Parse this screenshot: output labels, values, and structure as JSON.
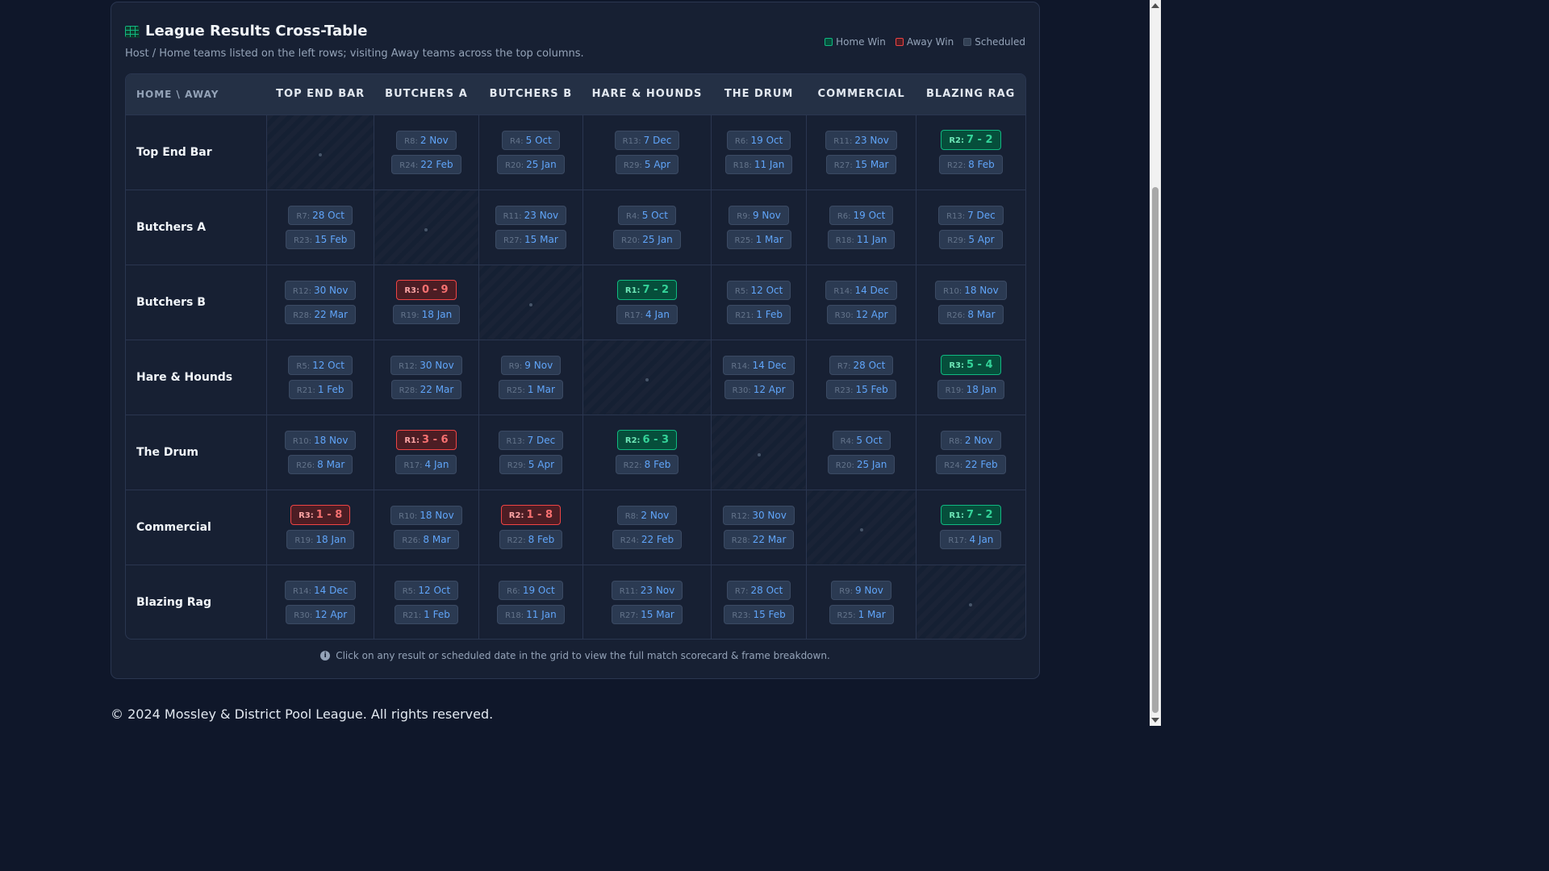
{
  "card": {
    "title": "League Results Cross-Table",
    "subtitle": "Host / Home teams listed on the left rows; visiting Away teams across the top columns.",
    "legend": [
      {
        "label": "Home Win",
        "kind": "home"
      },
      {
        "label": "Away Win",
        "kind": "away"
      },
      {
        "label": "Scheduled",
        "kind": "sched"
      }
    ],
    "corner_label": "HOME \\ AWAY",
    "columns": [
      "TOP END BAR",
      "BUTCHERS A",
      "BUTCHERS B",
      "HARE & HOUNDS",
      "THE DRUM",
      "COMMERCIAL",
      "BLAZING RAG"
    ],
    "note": "Click on any result or scheduled date in the grid to view the full match scorecard & frame breakdown."
  },
  "rows": [
    {
      "team": "Top End Bar",
      "cells": [
        null,
        [
          {
            "r": "R8:",
            "t": "2 Nov",
            "k": "sched"
          },
          {
            "r": "R24:",
            "t": "22 Feb",
            "k": "sched"
          }
        ],
        [
          {
            "r": "R4:",
            "t": "5 Oct",
            "k": "sched"
          },
          {
            "r": "R20:",
            "t": "25 Jan",
            "k": "sched"
          }
        ],
        [
          {
            "r": "R13:",
            "t": "7 Dec",
            "k": "sched"
          },
          {
            "r": "R29:",
            "t": "5 Apr",
            "k": "sched"
          }
        ],
        [
          {
            "r": "R6:",
            "t": "19 Oct",
            "k": "sched"
          },
          {
            "r": "R18:",
            "t": "11 Jan",
            "k": "sched"
          }
        ],
        [
          {
            "r": "R11:",
            "t": "23 Nov",
            "k": "sched"
          },
          {
            "r": "R27:",
            "t": "15 Mar",
            "k": "sched"
          }
        ],
        [
          {
            "r": "R2:",
            "t": "7 - 2",
            "k": "home"
          },
          {
            "r": "R22:",
            "t": "8 Feb",
            "k": "sched"
          }
        ]
      ]
    },
    {
      "team": "Butchers A",
      "cells": [
        [
          {
            "r": "R7:",
            "t": "28 Oct",
            "k": "sched"
          },
          {
            "r": "R23:",
            "t": "15 Feb",
            "k": "sched"
          }
        ],
        null,
        [
          {
            "r": "R11:",
            "t": "23 Nov",
            "k": "sched"
          },
          {
            "r": "R27:",
            "t": "15 Mar",
            "k": "sched"
          }
        ],
        [
          {
            "r": "R4:",
            "t": "5 Oct",
            "k": "sched"
          },
          {
            "r": "R20:",
            "t": "25 Jan",
            "k": "sched"
          }
        ],
        [
          {
            "r": "R9:",
            "t": "9 Nov",
            "k": "sched"
          },
          {
            "r": "R25:",
            "t": "1 Mar",
            "k": "sched"
          }
        ],
        [
          {
            "r": "R6:",
            "t": "19 Oct",
            "k": "sched"
          },
          {
            "r": "R18:",
            "t": "11 Jan",
            "k": "sched"
          }
        ],
        [
          {
            "r": "R13:",
            "t": "7 Dec",
            "k": "sched"
          },
          {
            "r": "R29:",
            "t": "5 Apr",
            "k": "sched"
          }
        ]
      ]
    },
    {
      "team": "Butchers B",
      "cells": [
        [
          {
            "r": "R12:",
            "t": "30 Nov",
            "k": "sched"
          },
          {
            "r": "R28:",
            "t": "22 Mar",
            "k": "sched"
          }
        ],
        [
          {
            "r": "R3:",
            "t": "0 - 9",
            "k": "away"
          },
          {
            "r": "R19:",
            "t": "18 Jan",
            "k": "sched"
          }
        ],
        null,
        [
          {
            "r": "R1:",
            "t": "7 - 2",
            "k": "home"
          },
          {
            "r": "R17:",
            "t": "4 Jan",
            "k": "sched"
          }
        ],
        [
          {
            "r": "R5:",
            "t": "12 Oct",
            "k": "sched"
          },
          {
            "r": "R21:",
            "t": "1 Feb",
            "k": "sched"
          }
        ],
        [
          {
            "r": "R14:",
            "t": "14 Dec",
            "k": "sched"
          },
          {
            "r": "R30:",
            "t": "12 Apr",
            "k": "sched"
          }
        ],
        [
          {
            "r": "R10:",
            "t": "18 Nov",
            "k": "sched"
          },
          {
            "r": "R26:",
            "t": "8 Mar",
            "k": "sched"
          }
        ]
      ]
    },
    {
      "team": "Hare & Hounds",
      "cells": [
        [
          {
            "r": "R5:",
            "t": "12 Oct",
            "k": "sched"
          },
          {
            "r": "R21:",
            "t": "1 Feb",
            "k": "sched"
          }
        ],
        [
          {
            "r": "R12:",
            "t": "30 Nov",
            "k": "sched"
          },
          {
            "r": "R28:",
            "t": "22 Mar",
            "k": "sched"
          }
        ],
        [
          {
            "r": "R9:",
            "t": "9 Nov",
            "k": "sched"
          },
          {
            "r": "R25:",
            "t": "1 Mar",
            "k": "sched"
          }
        ],
        null,
        [
          {
            "r": "R14:",
            "t": "14 Dec",
            "k": "sched"
          },
          {
            "r": "R30:",
            "t": "12 Apr",
            "k": "sched"
          }
        ],
        [
          {
            "r": "R7:",
            "t": "28 Oct",
            "k": "sched"
          },
          {
            "r": "R23:",
            "t": "15 Feb",
            "k": "sched"
          }
        ],
        [
          {
            "r": "R3:",
            "t": "5 - 4",
            "k": "home"
          },
          {
            "r": "R19:",
            "t": "18 Jan",
            "k": "sched"
          }
        ]
      ]
    },
    {
      "team": "The Drum",
      "cells": [
        [
          {
            "r": "R10:",
            "t": "18 Nov",
            "k": "sched"
          },
          {
            "r": "R26:",
            "t": "8 Mar",
            "k": "sched"
          }
        ],
        [
          {
            "r": "R1:",
            "t": "3 - 6",
            "k": "away"
          },
          {
            "r": "R17:",
            "t": "4 Jan",
            "k": "sched"
          }
        ],
        [
          {
            "r": "R13:",
            "t": "7 Dec",
            "k": "sched"
          },
          {
            "r": "R29:",
            "t": "5 Apr",
            "k": "sched"
          }
        ],
        [
          {
            "r": "R2:",
            "t": "6 - 3",
            "k": "home"
          },
          {
            "r": "R22:",
            "t": "8 Feb",
            "k": "sched"
          }
        ],
        null,
        [
          {
            "r": "R4:",
            "t": "5 Oct",
            "k": "sched"
          },
          {
            "r": "R20:",
            "t": "25 Jan",
            "k": "sched"
          }
        ],
        [
          {
            "r": "R8:",
            "t": "2 Nov",
            "k": "sched"
          },
          {
            "r": "R24:",
            "t": "22 Feb",
            "k": "sched"
          }
        ]
      ]
    },
    {
      "team": "Commercial",
      "cells": [
        [
          {
            "r": "R3:",
            "t": "1 - 8",
            "k": "away"
          },
          {
            "r": "R19:",
            "t": "18 Jan",
            "k": "sched"
          }
        ],
        [
          {
            "r": "R10:",
            "t": "18 Nov",
            "k": "sched"
          },
          {
            "r": "R26:",
            "t": "8 Mar",
            "k": "sched"
          }
        ],
        [
          {
            "r": "R2:",
            "t": "1 - 8",
            "k": "away"
          },
          {
            "r": "R22:",
            "t": "8 Feb",
            "k": "sched"
          }
        ],
        [
          {
            "r": "R8:",
            "t": "2 Nov",
            "k": "sched"
          },
          {
            "r": "R24:",
            "t": "22 Feb",
            "k": "sched"
          }
        ],
        [
          {
            "r": "R12:",
            "t": "30 Nov",
            "k": "sched"
          },
          {
            "r": "R28:",
            "t": "22 Mar",
            "k": "sched"
          }
        ],
        null,
        [
          {
            "r": "R1:",
            "t": "7 - 2",
            "k": "home"
          },
          {
            "r": "R17:",
            "t": "4 Jan",
            "k": "sched"
          }
        ]
      ]
    },
    {
      "team": "Blazing Rag",
      "cells": [
        [
          {
            "r": "R14:",
            "t": "14 Dec",
            "k": "sched"
          },
          {
            "r": "R30:",
            "t": "12 Apr",
            "k": "sched"
          }
        ],
        [
          {
            "r": "R5:",
            "t": "12 Oct",
            "k": "sched"
          },
          {
            "r": "R21:",
            "t": "1 Feb",
            "k": "sched"
          }
        ],
        [
          {
            "r": "R6:",
            "t": "19 Oct",
            "k": "sched"
          },
          {
            "r": "R18:",
            "t": "11 Jan",
            "k": "sched"
          }
        ],
        [
          {
            "r": "R11:",
            "t": "23 Nov",
            "k": "sched"
          },
          {
            "r": "R27:",
            "t": "15 Mar",
            "k": "sched"
          }
        ],
        [
          {
            "r": "R7:",
            "t": "28 Oct",
            "k": "sched"
          },
          {
            "r": "R23:",
            "t": "15 Feb",
            "k": "sched"
          }
        ],
        [
          {
            "r": "R9:",
            "t": "9 Nov",
            "k": "sched"
          },
          {
            "r": "R25:",
            "t": "1 Mar",
            "k": "sched"
          }
        ],
        null
      ]
    }
  ],
  "footer": "© 2024 Mossley & District Pool League. All rights reserved.",
  "icons": {
    "title": "table-grid-icon",
    "note": "info-icon"
  },
  "colors": {
    "home_win": "#10b981",
    "away_win": "#ef4444",
    "scheduled": "#60a5fa",
    "background": "#0f172a"
  }
}
